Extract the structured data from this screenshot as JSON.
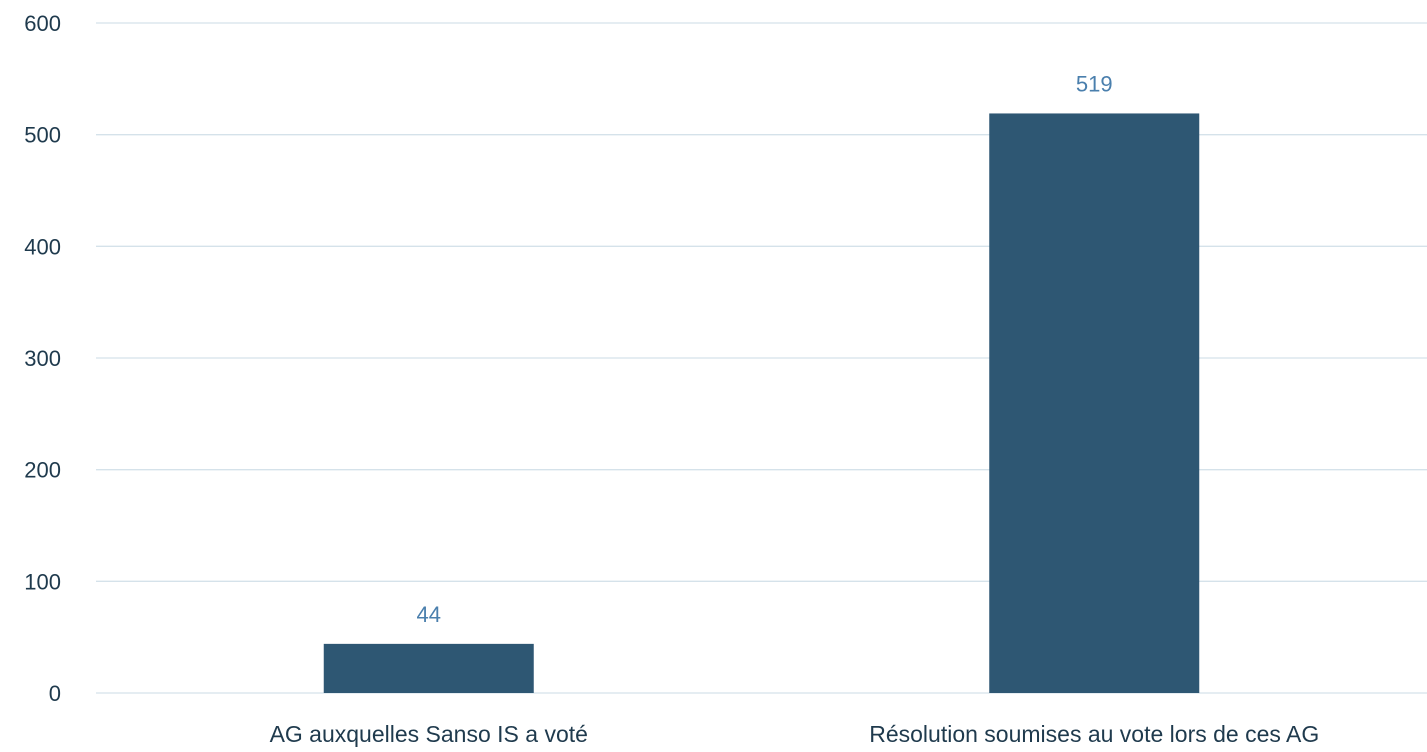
{
  "chart_data": {
    "type": "bar",
    "categories": [
      "AG auxquelles Sanso IS a voté",
      "Résolution soumises au vote lors de ces AG"
    ],
    "values": [
      44,
      519
    ],
    "data_labels": [
      "44",
      "519"
    ],
    "ylim": [
      0,
      600
    ],
    "yticks": [
      0,
      100,
      200,
      300,
      400,
      500,
      600
    ],
    "grid": true,
    "legend": "none"
  },
  "colors": {
    "bar": "#2e5773",
    "data_label": "#4a7fad",
    "axis_text": "#1f3a4d",
    "gridline": "#d5e2ea"
  }
}
